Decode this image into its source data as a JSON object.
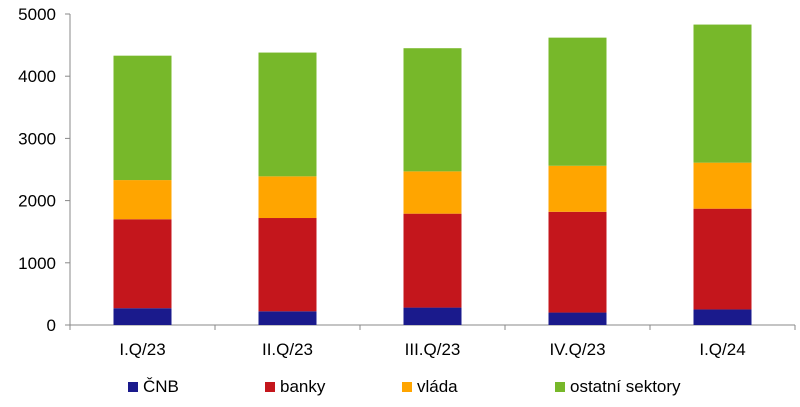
{
  "chart_data": {
    "type": "bar",
    "stacked": true,
    "title": "",
    "xlabel": "",
    "ylabel": "",
    "ylim": [
      0,
      5000
    ],
    "yticks": [
      0,
      1000,
      2000,
      3000,
      4000,
      5000
    ],
    "grid": false,
    "legend_position": "bottom",
    "categories": [
      "I.Q/23",
      "II.Q/23",
      "III.Q/23",
      "IV.Q/23",
      "I.Q/24"
    ],
    "series": [
      {
        "name": "ČNB",
        "color": "#1a1a8c",
        "values": [
          270,
          220,
          280,
          200,
          250
        ]
      },
      {
        "name": "banky",
        "color": "#c4161c",
        "values": [
          1430,
          1500,
          1510,
          1620,
          1620
        ]
      },
      {
        "name": "vláda",
        "color": "#ffa500",
        "values": [
          630,
          670,
          680,
          740,
          740
        ]
      },
      {
        "name": "ostatní sektory",
        "color": "#77b82a",
        "values": [
          2000,
          1990,
          1980,
          2060,
          2220
        ]
      }
    ]
  }
}
